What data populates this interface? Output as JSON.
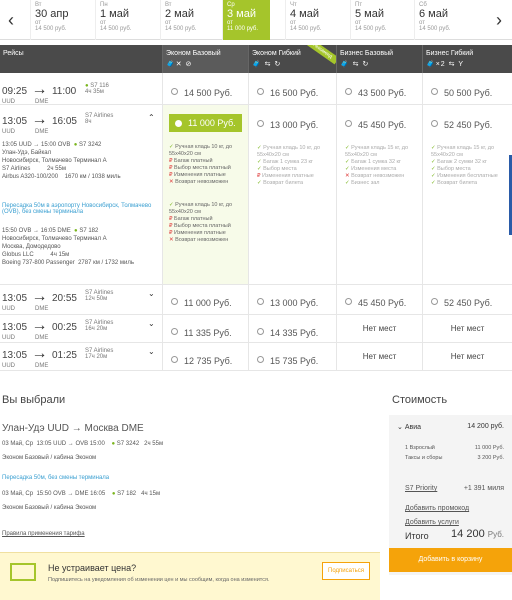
{
  "datebar": {
    "dates": [
      {
        "dow": "Вт",
        "day": "30 апр",
        "price": "14 500 руб."
      },
      {
        "dow": "Пн",
        "day": "1 май",
        "price": "14 500 руб."
      },
      {
        "dow": "Вт",
        "day": "2 май",
        "price": "14 500 руб."
      },
      {
        "dow": "Ср",
        "day": "3 май",
        "price": "11 000 руб."
      },
      {
        "dow": "Чт",
        "day": "4 май",
        "price": "14 500 руб."
      },
      {
        "dow": "Пт",
        "day": "5 май",
        "price": "14 500 руб."
      },
      {
        "dow": "Сб",
        "day": "6 май",
        "price": "14 500 руб."
      }
    ],
    "from_label": "от",
    "prev": "‹",
    "next": "›"
  },
  "table": {
    "col_flights": "Рейсы",
    "col_econ_base": "Эконом Базовый",
    "col_econ_flex": "Эконом Гибкий",
    "col_bus_base": "Бизнес Базовый",
    "col_bus_flex": "Бизнес Гибкий",
    "ribbon": "Рекоменд",
    "icons_econ_base": "🧳✕ ⊘",
    "icons_econ_flex": "🧳 ⇆ ↻",
    "icons_bus_base": "🧳 ⇆ ↻",
    "icons_bus_flex": "🧳×2 ⇆ Y",
    "rows": [
      {
        "dep": "09:25",
        "arr": "11:00",
        "from": "UUD",
        "to": "DME",
        "airline": "S7 116",
        "dur": "4ч 35м",
        "p1": "14 500 Руб.",
        "p2": "16 500 Руб.",
        "p3": "43 500 Руб.",
        "p4": "50 500 Руб."
      },
      {
        "dep": "13:05",
        "arr": "16:05",
        "from": "UUD",
        "to": "DME",
        "airline": "S7 Airlines",
        "dur": "8ч",
        "p1": "11 000 Руб.",
        "p2": "13 000 Руб.",
        "p3": "45 450 Руб.",
        "p4": "52 450 Руб."
      },
      {
        "dep": "13:05",
        "arr": "20:55",
        "from": "UUD",
        "to": "DME",
        "airline": "S7 Airlines",
        "dur": "12ч 50м",
        "p1": "11 000 Руб.",
        "p2": "13 000 Руб.",
        "p3": "45 450 Руб.",
        "p4": "52 450 Руб."
      },
      {
        "dep": "13:05",
        "arr": "00:25",
        "from": "UUD",
        "to": "DME",
        "airline": "S7 Airlines",
        "dur": "16ч 20м",
        "p1": "11 335 Руб.",
        "p2": "14 335 Руб.",
        "p3": "Нет мест",
        "p4": "Нет мест",
        "next_day": "+1 день"
      },
      {
        "dep": "13:05",
        "arr": "01:25",
        "from": "UUD",
        "to": "DME",
        "airline": "S7 Airlines",
        "dur": "17ч 20м",
        "p1": "12 735 Руб.",
        "p2": "15 735 Руб.",
        "p3": "Нет мест",
        "p4": "Нет мест",
        "next_day": "+1 день"
      }
    ],
    "seg1": {
      "times": "13:05 UUD → 15:00 OVB",
      "flight": "S7 3242",
      "city1": "Улан-Удэ, Байкал",
      "city2": "Новосибирск, Толмачево Терминал А",
      "dur": "2ч 55м",
      "airline": "S7 Airlines",
      "plane": "Airbus A320-100/200",
      "dist": "1670 км / 1038 миль"
    },
    "transfer": "Пересадка 50м в аэропорту Новосибирск, Толмачево (OVB), без смены терминала",
    "seg2": {
      "times": "15:50 OVB → 16:05 DME",
      "flight": "S7 182",
      "city1": "Новосибирск, Толмачево Терминал А",
      "city2": "Москва, Домодедово",
      "dur": "4ч 15м",
      "airline": "Globus LLC",
      "plane": "Boeing 737-800 Passenger",
      "dist": "2787 км / 1732 миль"
    },
    "econ_base_feats": [
      "Ручная кладь 10 кг, до 55х40х20 см",
      "Багаж платный",
      "Выбор места платный",
      "Изменения платные",
      "Возврат невозможен"
    ],
    "econ_flex_feats": [
      "Ручная кладь 10 кг, до 55х40х20 см",
      "Багаж 1 сумка 23 кг",
      "Выбор места",
      "Изменения платные",
      "Возврат билета"
    ],
    "bus_base_feats": [
      "Ручная кладь 15 кг, до 55х40х20 см",
      "Багаж 1 сумка 32 кг",
      "Изменения места",
      "Возврат невозможен",
      "Бизнес зал"
    ],
    "bus_flex_feats": [
      "Ручная кладь 15 кг, до 55х40х20 см",
      "Багаж 2 сумки 32 кг",
      "Выбор места",
      "Изменения бесплатные",
      "Возврат билета"
    ]
  },
  "summary": {
    "title": "Вы выбрали",
    "route": "Улан-Удэ UUD → Москва DME",
    "leg1": {
      "date": "03 Май, Ср",
      "times": "13:05 UUD → OVB 15:00",
      "flight": "S7 3242",
      "dur": "2ч 55м",
      "fare": "Эконом Базовый / кабина Эконом"
    },
    "transfer": "Пересадка 50м, без смены терминала",
    "leg2": {
      "date": "03 Май, Ср",
      "times": "15:50 OVB → DME 16:05",
      "flight": "S7 182",
      "dur": "4ч 15м",
      "fare": "Эконом Базовый / кабина Эконом"
    },
    "rules": "Правила применения тарифа"
  },
  "cost": {
    "title": "Стоимость",
    "avia": "Авиа",
    "avia_price": "14 200 руб.",
    "adult": "1 Взрослый",
    "adult_price": "11 000 Руб.",
    "taxes": "Таксы и сборы",
    "taxes_price": "3 200 Руб.",
    "priority": "S7 Priority",
    "miles": "+1 391 миля",
    "promo": "Добавить промокод",
    "insurance": "Добавить услуги",
    "total_label": "Итого",
    "total": "14 200",
    "currency": "Руб.",
    "add_cart": "Добавить в корзину"
  },
  "promo": {
    "title": "Не устраивает цена?",
    "text": "Подпишитесь на уведомления об изменении цен и мы сообщим, когда она изменится.",
    "button": "Подписаться"
  }
}
